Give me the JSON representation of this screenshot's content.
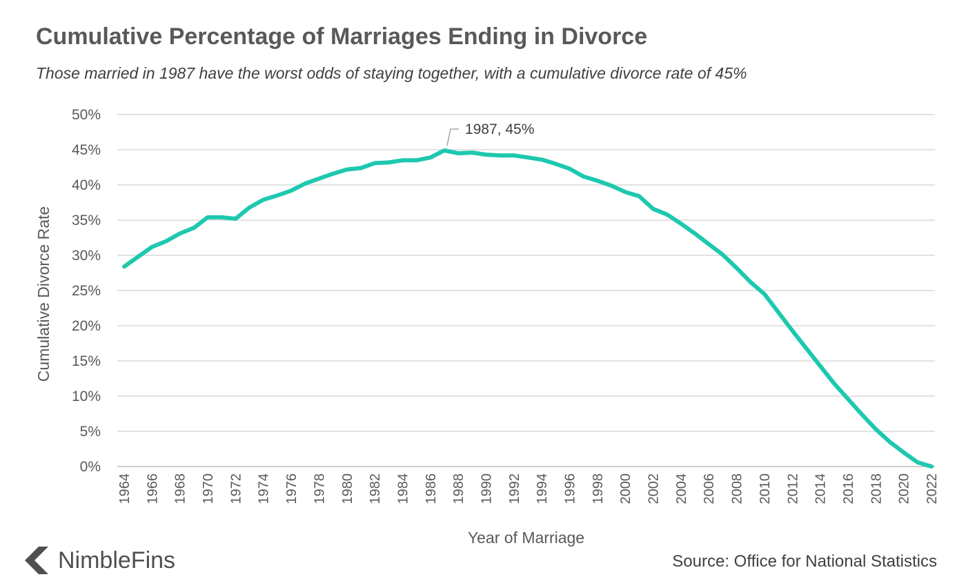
{
  "header": {
    "title": "Cumulative Percentage of Marriages Ending in Divorce",
    "subtitle": "Those married in 1987 have the worst odds of staying together, with a cumulative divorce rate of 45%"
  },
  "footer": {
    "brand": "NimbleFins",
    "source": "Source: Office for National Statistics"
  },
  "chart_data": {
    "type": "line",
    "xlabel": "Year of Marriage",
    "ylabel": "Cumulative Divorce Rate",
    "ylim": [
      0,
      50
    ],
    "grid": true,
    "line_color": "#1ec8b0",
    "y_ticks": [
      "0%",
      "5%",
      "10%",
      "15%",
      "20%",
      "25%",
      "30%",
      "35%",
      "40%",
      "45%",
      "50%"
    ],
    "x_ticks": [
      "1964",
      "1966",
      "1968",
      "1970",
      "1972",
      "1974",
      "1976",
      "1978",
      "1980",
      "1982",
      "1984",
      "1986",
      "1988",
      "1990",
      "1992",
      "1994",
      "1996",
      "1998",
      "2000",
      "2002",
      "2004",
      "2006",
      "2008",
      "2010",
      "2012",
      "2014",
      "2016",
      "2018",
      "2020",
      "2022"
    ],
    "annotation": {
      "text": "1987, 45%",
      "x": 1987,
      "y": 45
    },
    "series": [
      {
        "x": [
          1964,
          1965,
          1966,
          1967,
          1968,
          1969,
          1970,
          1971,
          1972,
          1973,
          1974,
          1975,
          1976,
          1977,
          1978,
          1979,
          1980,
          1981,
          1982,
          1983,
          1984,
          1985,
          1986,
          1987,
          1988,
          1989,
          1990,
          1991,
          1992,
          1993,
          1994,
          1995,
          1996,
          1997,
          1998,
          1999,
          2000,
          2001,
          2002,
          2003,
          2004,
          2005,
          2006,
          2007,
          2008,
          2009,
          2010,
          2011,
          2012,
          2013,
          2014,
          2015,
          2016,
          2017,
          2018,
          2019,
          2020,
          2021,
          2022
        ],
        "values": [
          28.4,
          29.8,
          31.2,
          32.0,
          33.1,
          33.9,
          35.4,
          35.4,
          35.2,
          36.8,
          37.9,
          38.5,
          39.2,
          40.2,
          40.9,
          41.6,
          42.2,
          42.4,
          43.1,
          43.2,
          43.5,
          43.5,
          43.9,
          44.9,
          44.5,
          44.6,
          44.3,
          44.2,
          44.2,
          43.9,
          43.6,
          43.0,
          42.3,
          41.2,
          40.6,
          39.9,
          39.0,
          38.4,
          36.6,
          35.8,
          34.5,
          33.1,
          31.6,
          30.1,
          28.2,
          26.2,
          24.5,
          21.9,
          19.3,
          16.8,
          14.3,
          11.8,
          9.6,
          7.4,
          5.3,
          3.5,
          2.0,
          0.6,
          0.0
        ]
      }
    ]
  }
}
